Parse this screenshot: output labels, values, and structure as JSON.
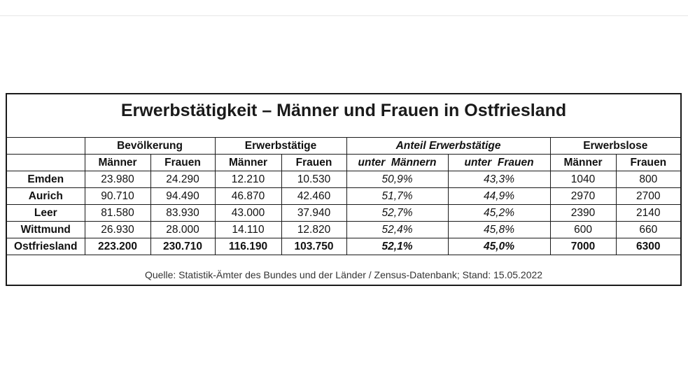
{
  "title": "Erwerbstätigkeit – Männer und Frauen in Ostfriesland",
  "groups": {
    "bevoelkerung": "Bevölkerung",
    "erwerbstaetige": "Erwerbstätige",
    "anteil": "Anteil Erwerbstätige",
    "erwerbslose": "Erwerbslose"
  },
  "subheaders": {
    "maenner": "Männer",
    "frauen": "Frauen",
    "unter_maennern": "unter  Männern",
    "unter_frauen": "unter  Frauen"
  },
  "rows": [
    {
      "name": "Emden",
      "bev_m": "23.980",
      "bev_f": "24.290",
      "erw_m": "12.210",
      "erw_f": "10.530",
      "ant_m": "50,9%",
      "ant_f": "43,3%",
      "los_m": "1040",
      "los_f": "800"
    },
    {
      "name": "Aurich",
      "bev_m": "90.710",
      "bev_f": "94.490",
      "erw_m": "46.870",
      "erw_f": "42.460",
      "ant_m": "51,7%",
      "ant_f": "44,9%",
      "los_m": "2970",
      "los_f": "2700"
    },
    {
      "name": "Leer",
      "bev_m": "81.580",
      "bev_f": "83.930",
      "erw_m": "43.000",
      "erw_f": "37.940",
      "ant_m": "52,7%",
      "ant_f": "45,2%",
      "los_m": "2390",
      "los_f": "2140"
    },
    {
      "name": "Wittmund",
      "bev_m": "26.930",
      "bev_f": "28.000",
      "erw_m": "14.110",
      "erw_f": "12.820",
      "ant_m": "52,4%",
      "ant_f": "45,8%",
      "los_m": "600",
      "los_f": "660"
    },
    {
      "name": "Ostfriesland",
      "bev_m": "223.200",
      "bev_f": "230.710",
      "erw_m": "116.190",
      "erw_f": "103.750",
      "ant_m": "52,1%",
      "ant_f": "45,0%",
      "los_m": "7000",
      "los_f": "6300"
    }
  ],
  "source": "Quelle: Statistik-Ämter des Bundes und der Länder / Zensus-Datenbank; Stand: 15.05.2022"
}
